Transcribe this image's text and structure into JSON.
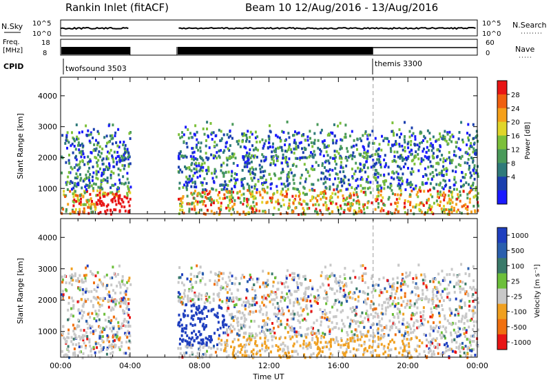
{
  "header": {
    "title": "Rankin Inlet (fitACF)",
    "beam": "Beam 10  12/Aug/2016 - 13/Aug/2016"
  },
  "strips": {
    "nsky": {
      "label": "N.Sky",
      "ticks": [
        "10^5",
        "10^0"
      ],
      "right_label": "N.Search",
      "right_ticks": [
        "10^5",
        "10^0"
      ]
    },
    "freq": {
      "label_line1": "Freq.",
      "label_line2": "[MHz]",
      "ticks": [
        "18",
        "8"
      ],
      "right_label": "Nave",
      "right_ticks": [
        "60",
        "0"
      ]
    },
    "cpid": {
      "label": "CPID",
      "modes": [
        "twofsound 3503",
        "themis 3300"
      ],
      "mode_change_hour": 18.0
    }
  },
  "chart_data": [
    {
      "type": "heatmap",
      "panel": "power",
      "ylabel": "Slant Range [km]",
      "ylim": [
        180,
        4600
      ],
      "yticks": [
        1000,
        2000,
        3000,
        4000
      ],
      "xlim": [
        0,
        24
      ],
      "gap_hours": [
        4.0,
        6.7
      ],
      "colorbar": {
        "label": "Power [dB]",
        "ticks": [
          "4",
          "8",
          "12",
          "16",
          "20",
          "24",
          "28"
        ],
        "range": [
          0,
          30
        ],
        "colors": [
          "#1a1aff",
          "#1a3fae",
          "#2f7a7a",
          "#4a9a5a",
          "#7cc03a",
          "#e0d52a",
          "#f5a01a",
          "#f06010",
          "#e81515"
        ]
      }
    },
    {
      "type": "heatmap",
      "panel": "velocity",
      "ylabel": "Slant Range [km]",
      "ylim": [
        180,
        4600
      ],
      "yticks": [
        1000,
        2000,
        3000,
        4000
      ],
      "xlim": [
        0,
        24
      ],
      "gap_hours": [
        4.0,
        6.7
      ],
      "colorbar": {
        "label": "Velocity [m s⁻¹]",
        "ticks": [
          "1000",
          "500",
          "100",
          "25",
          "-25",
          "-100",
          "-500",
          "-1000"
        ],
        "colors": [
          "#1f3fbf",
          "#2a5fae",
          "#3a7a6a",
          "#6cbf3a",
          "#c8c8c8",
          "#f0a020",
          "#f07010",
          "#e81515"
        ]
      }
    }
  ],
  "xaxis": {
    "label": "Time UT",
    "ticks": [
      "00:00",
      "04:00",
      "08:00",
      "12:00",
      "16:00",
      "20:00",
      "00:00"
    ]
  }
}
